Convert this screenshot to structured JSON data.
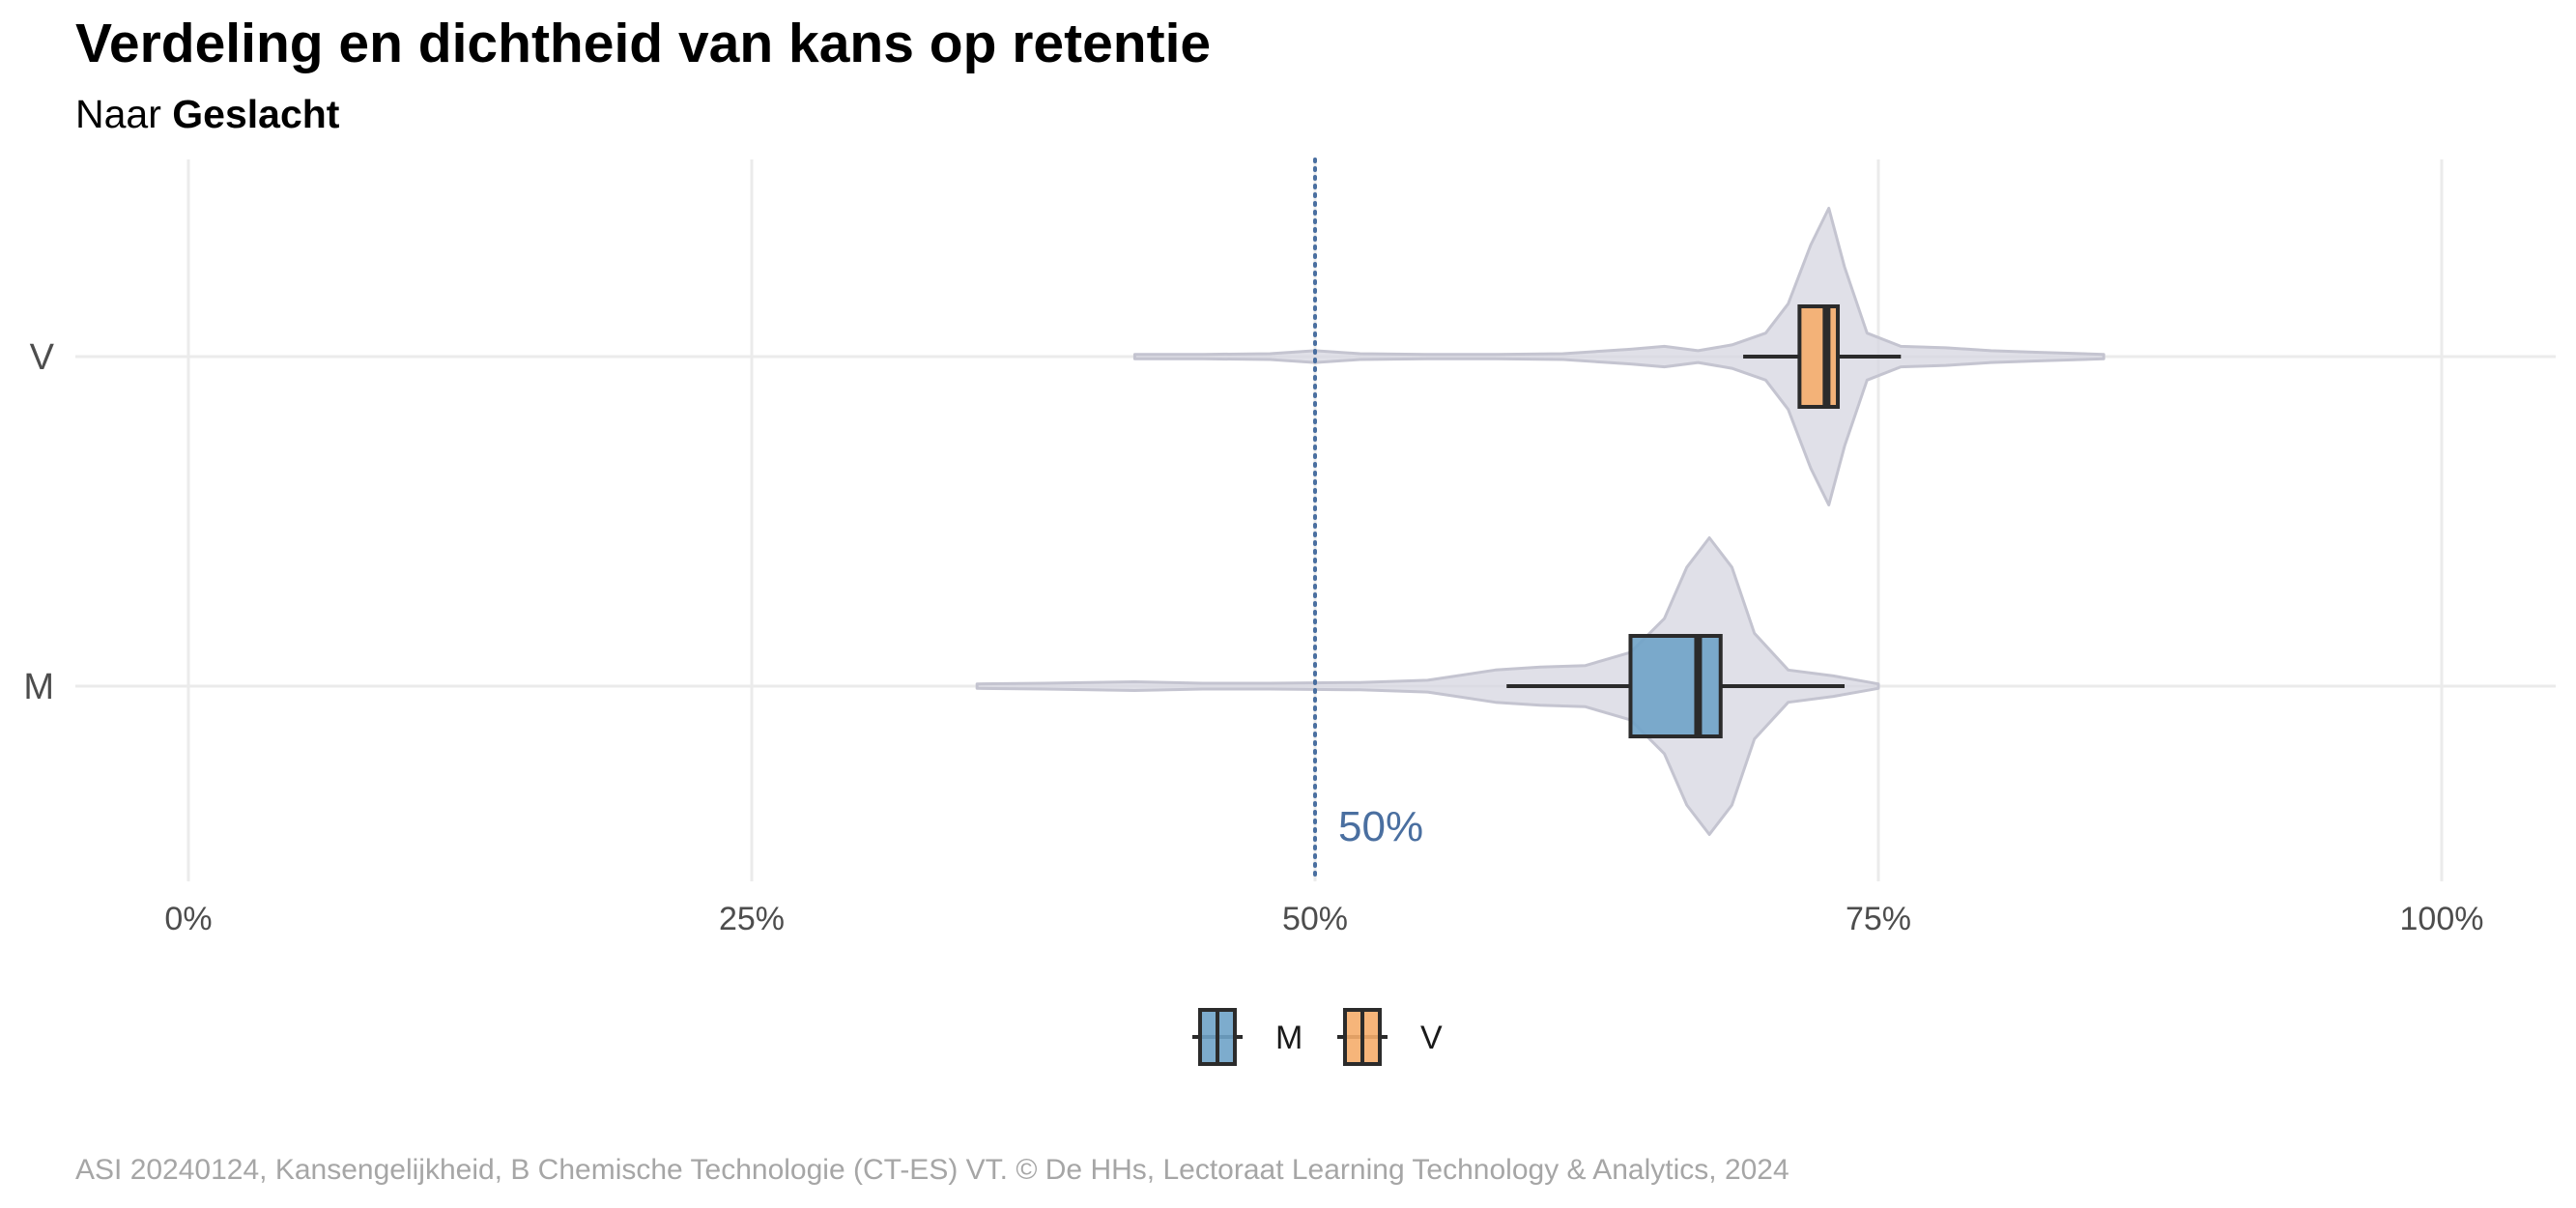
{
  "title": "Verdeling en dichtheid van kans op retentie",
  "subtitle": {
    "prefix": "Naar ",
    "group": "Geslacht"
  },
  "caption": "ASI 20240124, Kansengelijkheid, B Chemische Technologie (CT-ES) VT. © De HHs, Lectoraat Learning Technology & Analytics, 2024",
  "colors": {
    "M": "#6fa3c8",
    "V": "#f5ad6b",
    "violin": "#d6d6e0",
    "violin_stroke": "#c4c4d0",
    "reference": "#4a6fa0",
    "grid": "#ebebeb",
    "box_stroke": "#2b2b2b"
  },
  "chart_data": {
    "type": "violin-boxplot",
    "orientation": "horizontal",
    "x_axis": {
      "min": 0,
      "max": 1,
      "format": "percent"
    },
    "x_ticks": [
      {
        "value": 0,
        "label": "0%"
      },
      {
        "value": 0.25,
        "label": "25%"
      },
      {
        "value": 0.5,
        "label": "50%"
      },
      {
        "value": 0.75,
        "label": "75%"
      },
      {
        "value": 1,
        "label": "100%"
      }
    ],
    "categories": [
      "V",
      "M"
    ],
    "reference_line": {
      "value": 0.5,
      "label": "50%",
      "style": "dotted"
    },
    "groups": [
      {
        "name": "V",
        "box": {
          "whisker_low": 0.69,
          "q1": 0.715,
          "median": 0.727,
          "q3": 0.732,
          "whisker_high": 0.76
        },
        "density": [
          [
            0.42,
            0.005
          ],
          [
            0.45,
            0.005
          ],
          [
            0.48,
            0.01
          ],
          [
            0.5,
            0.03
          ],
          [
            0.52,
            0.01
          ],
          [
            0.55,
            0.005
          ],
          [
            0.58,
            0.005
          ],
          [
            0.61,
            0.01
          ],
          [
            0.64,
            0.04
          ],
          [
            0.655,
            0.06
          ],
          [
            0.67,
            0.03
          ],
          [
            0.685,
            0.07
          ],
          [
            0.7,
            0.15
          ],
          [
            0.71,
            0.35
          ],
          [
            0.72,
            0.75
          ],
          [
            0.728,
            1.0
          ],
          [
            0.735,
            0.6
          ],
          [
            0.745,
            0.15
          ],
          [
            0.76,
            0.06
          ],
          [
            0.78,
            0.05
          ],
          [
            0.8,
            0.03
          ],
          [
            0.82,
            0.02
          ],
          [
            0.85,
            0.005
          ]
        ]
      },
      {
        "name": "M",
        "box": {
          "whisker_low": 0.585,
          "q1": 0.64,
          "median": 0.67,
          "q3": 0.68,
          "whisker_high": 0.735
        },
        "density": [
          [
            0.35,
            0.005
          ],
          [
            0.38,
            0.01
          ],
          [
            0.42,
            0.02
          ],
          [
            0.45,
            0.01
          ],
          [
            0.48,
            0.01
          ],
          [
            0.52,
            0.015
          ],
          [
            0.55,
            0.03
          ],
          [
            0.58,
            0.1
          ],
          [
            0.6,
            0.12
          ],
          [
            0.62,
            0.13
          ],
          [
            0.64,
            0.22
          ],
          [
            0.655,
            0.45
          ],
          [
            0.665,
            0.8
          ],
          [
            0.675,
            1.0
          ],
          [
            0.685,
            0.8
          ],
          [
            0.695,
            0.35
          ],
          [
            0.71,
            0.1
          ],
          [
            0.73,
            0.06
          ],
          [
            0.75,
            0.005
          ]
        ]
      }
    ],
    "legend": {
      "position": "bottom",
      "entries": [
        "M",
        "V"
      ]
    }
  }
}
